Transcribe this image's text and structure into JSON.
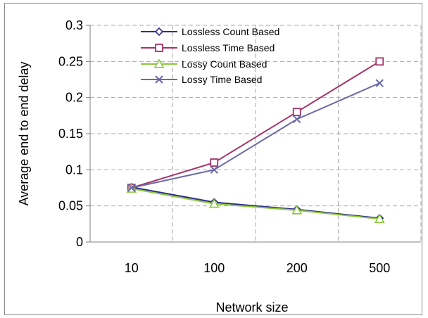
{
  "chart_data": {
    "type": "line",
    "title": "",
    "xlabel": "Network size",
    "ylabel": "Average end to end delay",
    "categories": [
      "10",
      "100",
      "200",
      "500"
    ],
    "ylim": [
      0,
      0.3
    ],
    "yticks": [
      "0",
      "0.05",
      "0.1",
      "0.15",
      "0.2",
      "0.25",
      "0.3"
    ],
    "grid": true,
    "legend_position": "top-left",
    "series": [
      {
        "name": "Lossless Count Based",
        "values": [
          0.076,
          0.055,
          0.045,
          0.033
        ],
        "color": "#2e2e8c",
        "marker": "diamond"
      },
      {
        "name": "Lossless Time Based",
        "values": [
          0.075,
          0.11,
          0.18,
          0.25
        ],
        "color": "#a3336a",
        "marker": "square"
      },
      {
        "name": "Lossy Count Based",
        "values": [
          0.074,
          0.053,
          0.044,
          0.032
        ],
        "color": "#8cc63f",
        "marker": "triangle"
      },
      {
        "name": "Lossy Time Based",
        "values": [
          0.075,
          0.1,
          0.17,
          0.22
        ],
        "color": "#6a6aa8",
        "marker": "x"
      }
    ]
  }
}
